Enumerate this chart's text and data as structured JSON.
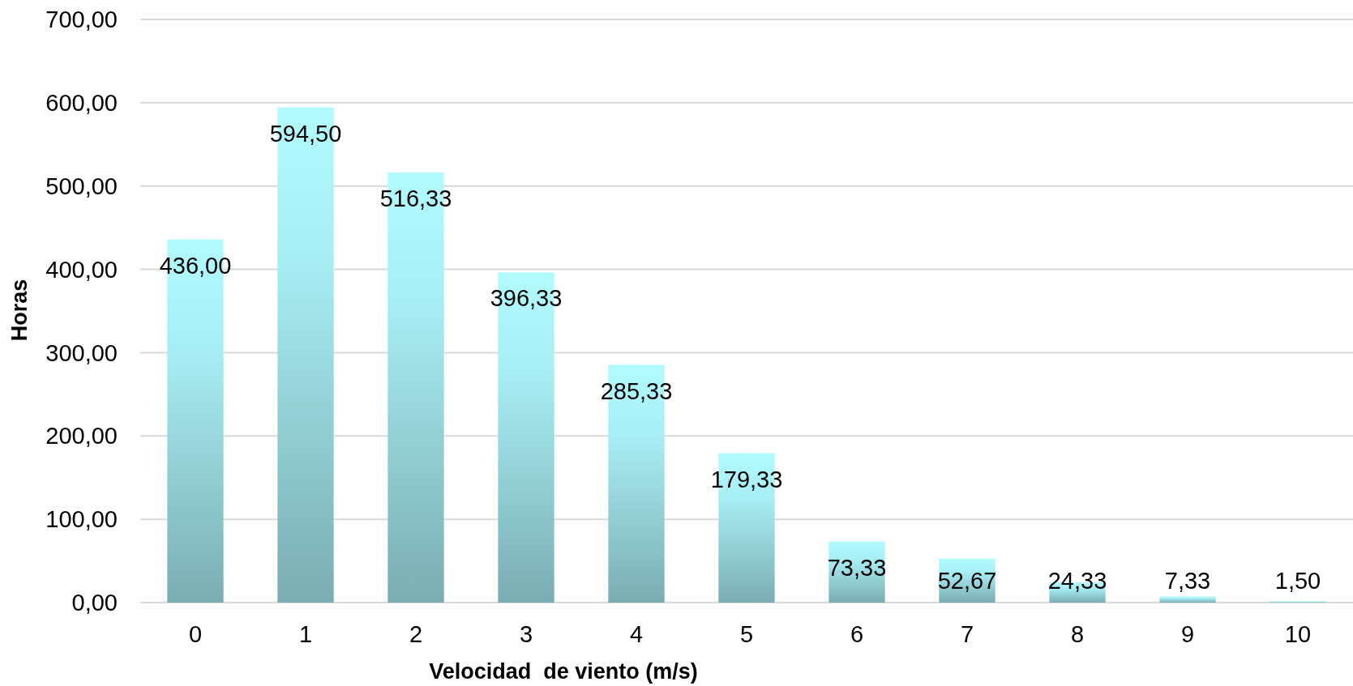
{
  "chart_data": {
    "type": "bar",
    "xlabel": "Velocidad  de viento (m/s)",
    "ylabel": "Horas",
    "categories": [
      "0",
      "1",
      "2",
      "3",
      "4",
      "5",
      "6",
      "7",
      "8",
      "9",
      "10"
    ],
    "values": [
      436.0,
      594.5,
      516.33,
      396.33,
      285.33,
      179.33,
      73.33,
      52.67,
      24.33,
      7.33,
      1.5
    ],
    "value_labels": [
      "436,00",
      "594,50",
      "516,33",
      "396,33",
      "285,33",
      "179,33",
      "73,33",
      "52,67",
      "24,33",
      "7,33",
      "1,50"
    ],
    "color": "#a8eef5",
    "ylim": [
      0,
      700
    ],
    "yticks": [
      {
        "value": 0,
        "label": "0,00"
      },
      {
        "value": 100,
        "label": "100,00"
      },
      {
        "value": 200,
        "label": "200,00"
      },
      {
        "value": 300,
        "label": "300,00"
      },
      {
        "value": 400,
        "label": "400,00"
      },
      {
        "value": 500,
        "label": "500,00"
      },
      {
        "value": 600,
        "label": "600,00"
      },
      {
        "value": 700,
        "label": "700,00"
      }
    ],
    "grid": "y"
  }
}
